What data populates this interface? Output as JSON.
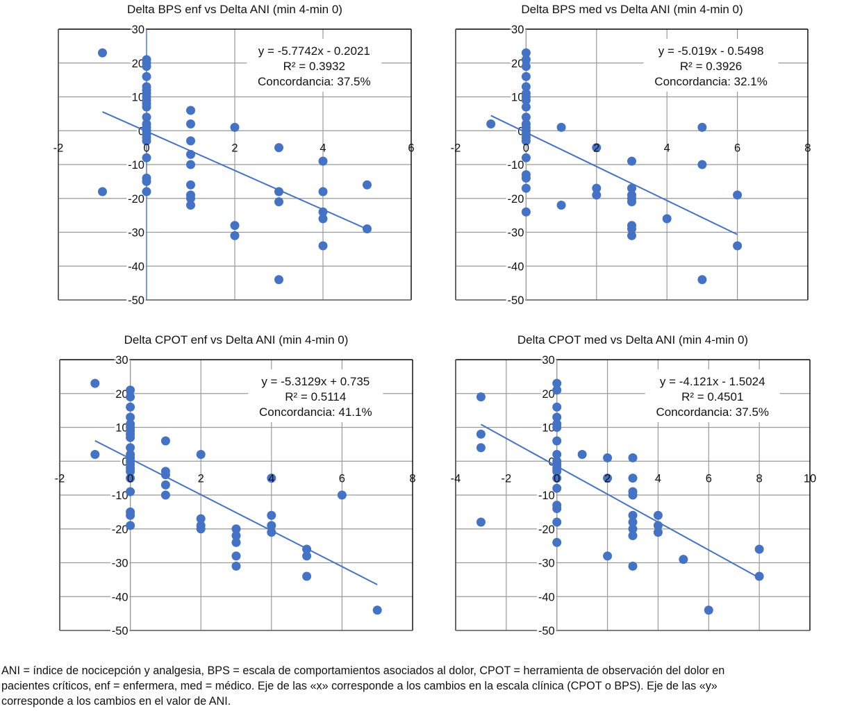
{
  "footnote": {
    "line1": "ANI = índice de nocicepción y analgesia, BPS = escala de comportamientos asociados al dolor, CPOT = herramienta de observación del dolor en",
    "line2": "pacientes críticos, enf = enfermera, med = médico. Eje de las «x» corresponde a los cambios en la escala clínica (CPOT o BPS). Eje de las «y»",
    "line3": "corresponde a los cambios en el valor de ANI."
  },
  "colors": {
    "points": "#4472C4",
    "trendline": "#4472C4",
    "grid": "#999999",
    "frame": "#000000"
  },
  "chart_data": [
    {
      "type": "scatter",
      "title": "Delta BPS enf vs Delta ANI (min 4-min 0)",
      "xlabel": "",
      "ylabel": "",
      "xlim": [
        -2,
        6
      ],
      "ylim": [
        -50,
        30
      ],
      "xticks": [
        -2,
        0,
        2,
        4,
        6
      ],
      "yticks": [
        30,
        20,
        10,
        0,
        -10,
        -20,
        -30,
        -40,
        -50
      ],
      "grid": true,
      "annotation": {
        "equation": "y = -5.7742x - 0.2021",
        "r2": "R² = 0.3932",
        "concordance": "Concordancia: 37.5%"
      },
      "trendline": {
        "slope": -5.7742,
        "intercept": -0.2021,
        "x_range": [
          -1,
          5
        ]
      },
      "points": [
        [
          -1,
          23
        ],
        [
          -1,
          -18
        ],
        [
          0,
          21
        ],
        [
          0,
          20
        ],
        [
          0,
          19
        ],
        [
          0,
          16
        ],
        [
          0,
          13
        ],
        [
          0,
          12
        ],
        [
          0,
          11
        ],
        [
          0,
          10
        ],
        [
          0,
          9
        ],
        [
          0,
          8
        ],
        [
          0,
          7
        ],
        [
          0,
          4
        ],
        [
          0,
          2
        ],
        [
          0,
          1
        ],
        [
          0,
          0
        ],
        [
          0,
          -1
        ],
        [
          0,
          -2
        ],
        [
          0,
          -3
        ],
        [
          0,
          -8
        ],
        [
          0,
          -14
        ],
        [
          0,
          -15
        ],
        [
          0,
          -18
        ],
        [
          1,
          6
        ],
        [
          1,
          2
        ],
        [
          1,
          -3
        ],
        [
          1,
          -7
        ],
        [
          1,
          -10
        ],
        [
          1,
          -16
        ],
        [
          1,
          -19
        ],
        [
          1,
          -20
        ],
        [
          1,
          -22
        ],
        [
          2,
          1
        ],
        [
          2,
          -28
        ],
        [
          2,
          -31
        ],
        [
          3,
          -5
        ],
        [
          3,
          -18
        ],
        [
          3,
          -21
        ],
        [
          3,
          -44
        ],
        [
          4,
          -9
        ],
        [
          4,
          -18
        ],
        [
          4,
          -24
        ],
        [
          4,
          -26
        ],
        [
          4,
          -34
        ],
        [
          5,
          -16
        ],
        [
          5,
          -29
        ]
      ]
    },
    {
      "type": "scatter",
      "title": "Delta BPS med vs Delta ANI (min 4-min 0)",
      "xlabel": "",
      "ylabel": "",
      "xlim": [
        -2,
        8
      ],
      "ylim": [
        -50,
        30
      ],
      "xticks": [
        -2,
        0,
        2,
        4,
        6,
        8
      ],
      "yticks": [
        30,
        20,
        10,
        0,
        -10,
        -20,
        -30,
        -40,
        -50
      ],
      "grid": true,
      "annotation": {
        "equation": "y = -5.019x - 0.5498",
        "r2": "R² = 0.3926",
        "concordance": "Concordancia: 32.1%"
      },
      "trendline": {
        "slope": -5.019,
        "intercept": -0.5498,
        "x_range": [
          -1,
          6
        ]
      },
      "points": [
        [
          -1,
          2
        ],
        [
          0,
          23
        ],
        [
          0,
          21
        ],
        [
          0,
          19
        ],
        [
          0,
          16
        ],
        [
          0,
          13
        ],
        [
          0,
          11
        ],
        [
          0,
          10
        ],
        [
          0,
          9
        ],
        [
          0,
          7
        ],
        [
          0,
          4
        ],
        [
          0,
          2
        ],
        [
          0,
          1
        ],
        [
          0,
          0
        ],
        [
          0,
          -1
        ],
        [
          0,
          -2
        ],
        [
          0,
          -3
        ],
        [
          0,
          -8
        ],
        [
          0,
          -13
        ],
        [
          0,
          -14
        ],
        [
          0,
          -17
        ],
        [
          0,
          -24
        ],
        [
          1,
          1
        ],
        [
          1,
          -22
        ],
        [
          2,
          -5
        ],
        [
          2,
          -17
        ],
        [
          2,
          -19
        ],
        [
          3,
          -9
        ],
        [
          3,
          -17
        ],
        [
          3,
          -19
        ],
        [
          3,
          -20
        ],
        [
          3,
          -21
        ],
        [
          3,
          -28
        ],
        [
          3,
          -29
        ],
        [
          3,
          -31
        ],
        [
          4,
          -26
        ],
        [
          5,
          1
        ],
        [
          5,
          -10
        ],
        [
          5,
          -44
        ],
        [
          6,
          -19
        ],
        [
          6,
          -34
        ]
      ]
    },
    {
      "type": "scatter",
      "title": "Delta CPOT enf vs Delta ANI (min 4-min 0)",
      "xlabel": "",
      "ylabel": "",
      "xlim": [
        -2,
        8
      ],
      "ylim": [
        -50,
        30
      ],
      "xticks": [
        -2,
        0,
        2,
        4,
        6,
        8
      ],
      "yticks": [
        30,
        20,
        10,
        0,
        -10,
        -20,
        -30,
        -40,
        -50
      ],
      "grid": true,
      "annotation": {
        "equation": "y = -5.3129x + 0.735",
        "r2": "R² = 0.5114",
        "concordance": "Concordancia: 41.1%"
      },
      "trendline": {
        "slope": -5.3129,
        "intercept": 0.735,
        "x_range": [
          -1,
          7
        ]
      },
      "points": [
        [
          -1,
          23
        ],
        [
          -1,
          2
        ],
        [
          0,
          21
        ],
        [
          0,
          19
        ],
        [
          0,
          16
        ],
        [
          0,
          13
        ],
        [
          0,
          11
        ],
        [
          0,
          10
        ],
        [
          0,
          9
        ],
        [
          0,
          8
        ],
        [
          0,
          7
        ],
        [
          0,
          4
        ],
        [
          0,
          2
        ],
        [
          0,
          1
        ],
        [
          0,
          0
        ],
        [
          0,
          -1
        ],
        [
          0,
          -2
        ],
        [
          0,
          -3
        ],
        [
          0,
          -5
        ],
        [
          0,
          -9
        ],
        [
          0,
          -15
        ],
        [
          0,
          -16
        ],
        [
          0,
          -19
        ],
        [
          1,
          6
        ],
        [
          1,
          -3
        ],
        [
          1,
          -4
        ],
        [
          1,
          -7
        ],
        [
          1,
          -10
        ],
        [
          2,
          2
        ],
        [
          2,
          -17
        ],
        [
          2,
          -19
        ],
        [
          2,
          -20
        ],
        [
          3,
          -20
        ],
        [
          3,
          -22
        ],
        [
          3,
          -24
        ],
        [
          3,
          -28
        ],
        [
          3,
          -31
        ],
        [
          4,
          -5
        ],
        [
          4,
          -16
        ],
        [
          4,
          -19
        ],
        [
          4,
          -21
        ],
        [
          5,
          -26
        ],
        [
          5,
          -28
        ],
        [
          5,
          -34
        ],
        [
          6,
          -10
        ],
        [
          7,
          -44
        ]
      ]
    },
    {
      "type": "scatter",
      "title": "Delta CPOT med vs Delta ANI (min 4-min 0)",
      "xlabel": "",
      "ylabel": "",
      "xlim": [
        -4,
        10
      ],
      "ylim": [
        -50,
        30
      ],
      "xticks": [
        -4,
        -2,
        0,
        2,
        4,
        6,
        8,
        10
      ],
      "yticks": [
        30,
        20,
        10,
        0,
        -10,
        -20,
        -30,
        -40,
        -50
      ],
      "grid": true,
      "annotation": {
        "equation": "y = -4.121x - 1.5024",
        "r2": "R² = 0.4501",
        "concordance": "Concordancia: 37.5%"
      },
      "trendline": {
        "slope": -4.121,
        "intercept": -1.5024,
        "x_range": [
          -3,
          8
        ]
      },
      "points": [
        [
          -3,
          19
        ],
        [
          -3,
          8
        ],
        [
          -3,
          4
        ],
        [
          -3,
          -18
        ],
        [
          0,
          23
        ],
        [
          0,
          21
        ],
        [
          0,
          16
        ],
        [
          0,
          13
        ],
        [
          0,
          11
        ],
        [
          0,
          10
        ],
        [
          0,
          6
        ],
        [
          0,
          2
        ],
        [
          0,
          0
        ],
        [
          0,
          -1
        ],
        [
          0,
          -2
        ],
        [
          0,
          -3
        ],
        [
          0,
          -5
        ],
        [
          0,
          -8
        ],
        [
          0,
          -13
        ],
        [
          0,
          -14
        ],
        [
          0,
          -18
        ],
        [
          0,
          -24
        ],
        [
          1,
          2
        ],
        [
          2,
          1
        ],
        [
          2,
          -5
        ],
        [
          2,
          -28
        ],
        [
          3,
          1
        ],
        [
          3,
          -5
        ],
        [
          3,
          -9
        ],
        [
          3,
          -10
        ],
        [
          3,
          -16
        ],
        [
          3,
          -18
        ],
        [
          3,
          -20
        ],
        [
          3,
          -22
        ],
        [
          3,
          -31
        ],
        [
          4,
          -16
        ],
        [
          4,
          -19
        ],
        [
          4,
          -21
        ],
        [
          5,
          -29
        ],
        [
          6,
          -44
        ],
        [
          8,
          -26
        ],
        [
          8,
          -34
        ]
      ]
    }
  ]
}
